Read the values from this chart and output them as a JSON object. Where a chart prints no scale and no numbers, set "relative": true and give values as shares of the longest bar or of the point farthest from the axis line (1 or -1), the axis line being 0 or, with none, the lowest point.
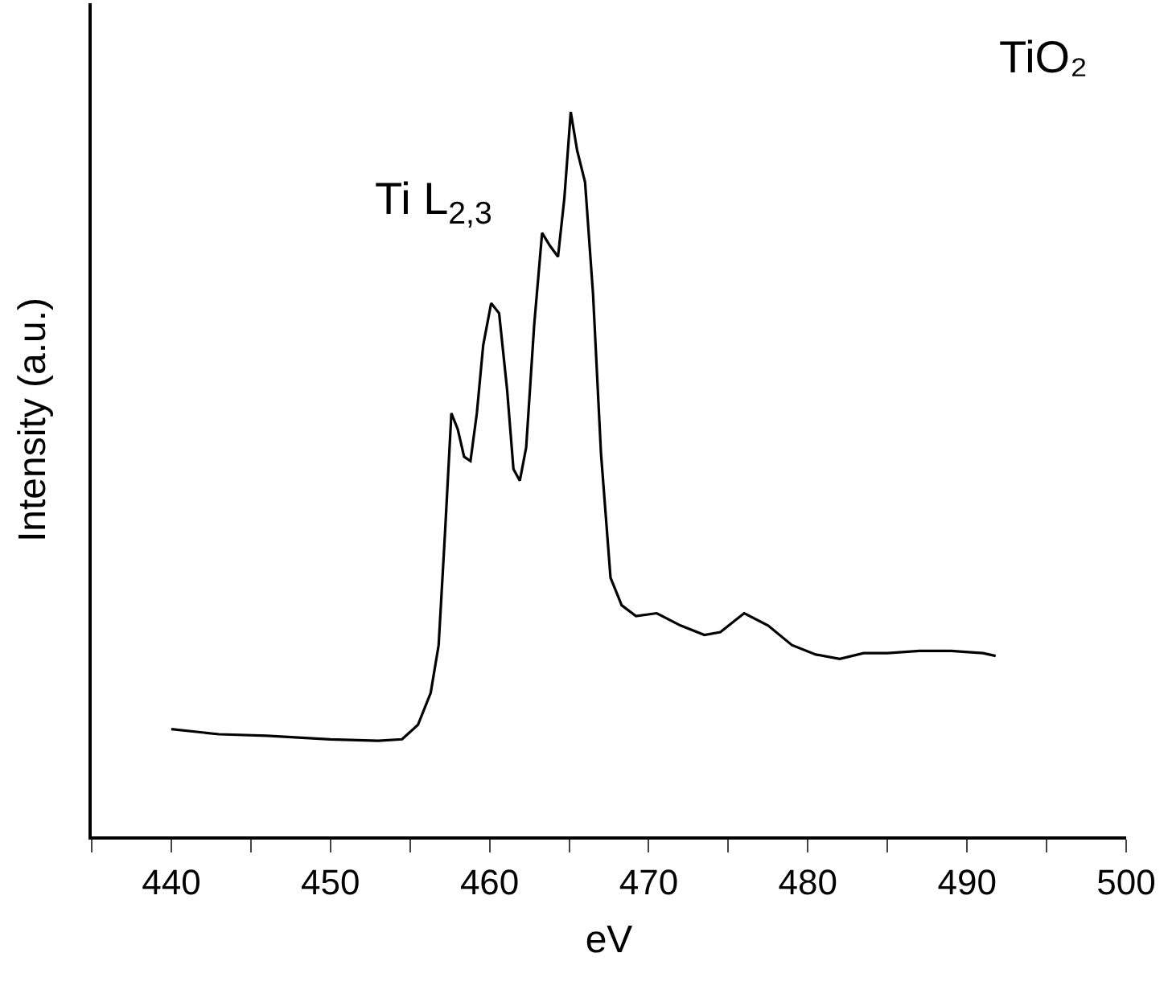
{
  "chart_data": {
    "type": "line",
    "relative": true,
    "xlabel": "eV",
    "ylabel": "Intensity (a.u.)",
    "annotations": [
      "Ti L$_{2,3}$",
      "TiO₂"
    ],
    "xlim": [
      435,
      500
    ],
    "xticks": [
      {
        "value": 435,
        "label": null
      },
      440,
      {
        "value": 445,
        "label": null
      },
      450,
      {
        "value": 455,
        "label": null
      },
      460,
      {
        "value": 465,
        "label": null
      },
      470,
      {
        "value": 475,
        "label": null
      },
      480,
      {
        "value": 485,
        "label": null
      },
      490,
      {
        "value": 495,
        "label": null
      },
      500
    ],
    "marker": "none",
    "line_style": "solid",
    "series": [
      {
        "color": "#000000",
        "x": [
          440,
          443,
          446,
          450,
          453,
          454.5,
          455.5,
          456.3,
          456.8,
          457.2,
          457.6,
          458.0,
          458.4,
          458.8,
          459.2,
          459.6,
          460.1,
          460.6,
          461.1,
          461.5,
          461.9,
          462.3,
          462.8,
          463.3,
          463.8,
          464.3,
          464.7,
          465.1,
          465.5,
          466.0,
          466.5,
          467.0,
          467.6,
          468.3,
          469.2,
          470.5,
          472,
          473.5,
          474.5,
          476,
          477.5,
          479,
          480.5,
          482,
          483.5,
          485,
          487,
          489,
          491,
          491.8
        ],
        "values": [
          0.148,
          0.141,
          0.139,
          0.134,
          0.132,
          0.134,
          0.154,
          0.198,
          0.264,
          0.419,
          0.584,
          0.562,
          0.524,
          0.518,
          0.584,
          0.678,
          0.736,
          0.722,
          0.617,
          0.507,
          0.491,
          0.537,
          0.705,
          0.833,
          0.815,
          0.8,
          0.881,
          1.0,
          0.947,
          0.903,
          0.749,
          0.529,
          0.357,
          0.319,
          0.304,
          0.308,
          0.291,
          0.278,
          0.282,
          0.308,
          0.291,
          0.264,
          0.251,
          0.245,
          0.253,
          0.253,
          0.256,
          0.256,
          0.253,
          0.249
        ]
      }
    ]
  }
}
